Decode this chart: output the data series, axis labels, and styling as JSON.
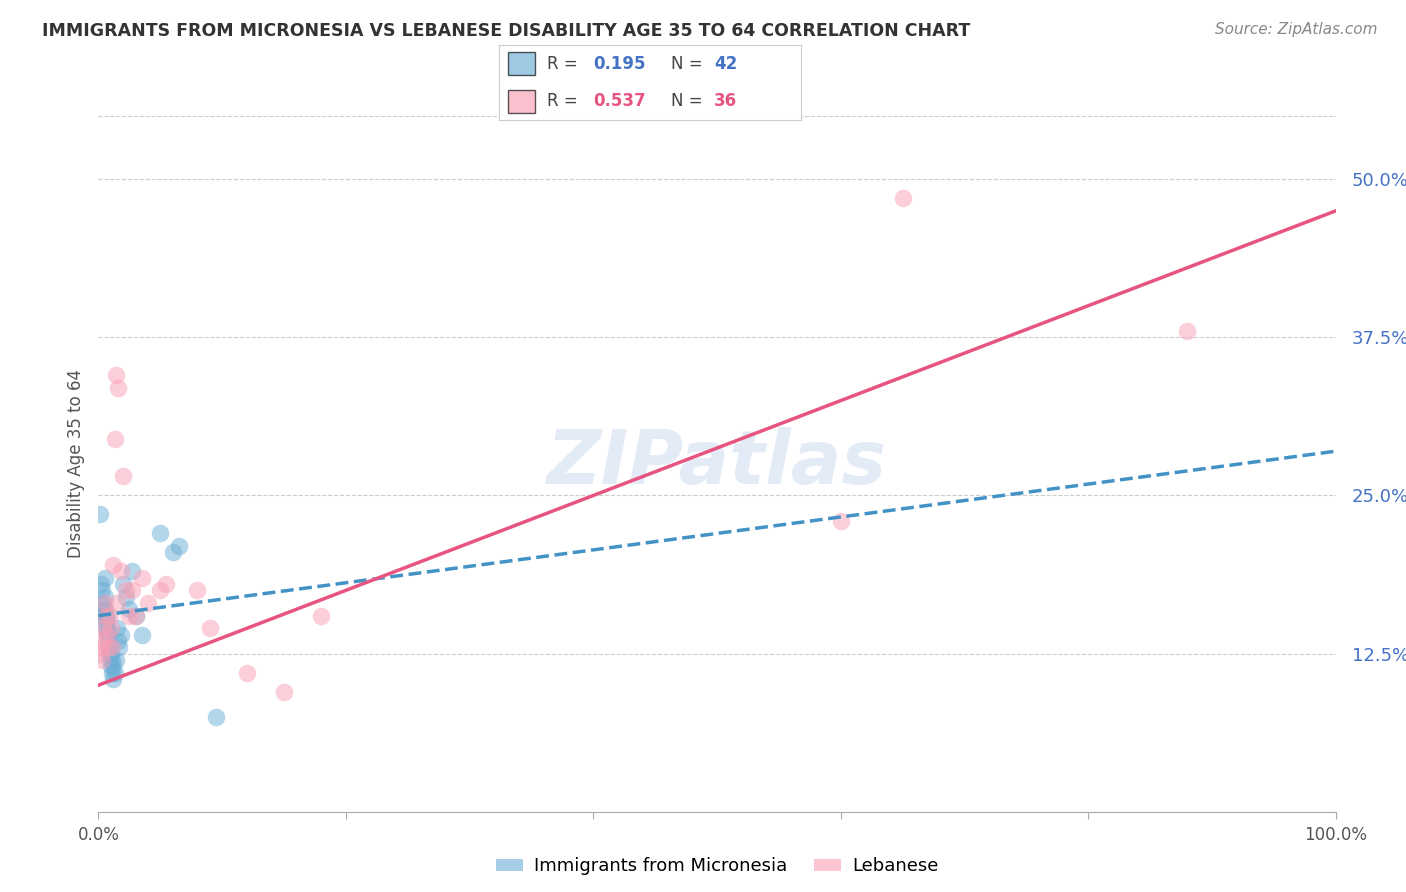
{
  "title": "IMMIGRANTS FROM MICRONESIA VS LEBANESE DISABILITY AGE 35 TO 64 CORRELATION CHART",
  "source": "Source: ZipAtlas.com",
  "ylabel": "Disability Age 35 to 64",
  "ytick_labels": [
    "12.5%",
    "25.0%",
    "37.5%",
    "50.0%"
  ],
  "ytick_values": [
    0.125,
    0.25,
    0.375,
    0.5
  ],
  "xlim": [
    0.0,
    1.0
  ],
  "ylim": [
    0.0,
    0.55
  ],
  "watermark": "ZIPatlas",
  "micronesia_color": "#6baed6",
  "lebanese_color": "#fa9fb5",
  "mic_trend_x0": 0.0,
  "mic_trend_x1": 1.0,
  "mic_trend_y0": 0.155,
  "mic_trend_y1": 0.285,
  "leb_trend_x0": 0.0,
  "leb_trend_x1": 1.0,
  "leb_trend_y0": 0.1,
  "leb_trend_y1": 0.475,
  "micronesia_x": [
    0.001,
    0.002,
    0.003,
    0.003,
    0.004,
    0.004,
    0.005,
    0.005,
    0.005,
    0.006,
    0.006,
    0.006,
    0.007,
    0.007,
    0.007,
    0.008,
    0.008,
    0.008,
    0.009,
    0.009,
    0.01,
    0.01,
    0.011,
    0.011,
    0.012,
    0.012,
    0.013,
    0.014,
    0.015,
    0.016,
    0.017,
    0.018,
    0.02,
    0.022,
    0.025,
    0.027,
    0.03,
    0.035,
    0.05,
    0.06,
    0.065,
    0.095
  ],
  "micronesia_y": [
    0.235,
    0.18,
    0.16,
    0.175,
    0.155,
    0.165,
    0.185,
    0.17,
    0.16,
    0.155,
    0.15,
    0.145,
    0.155,
    0.145,
    0.14,
    0.135,
    0.14,
    0.13,
    0.125,
    0.12,
    0.125,
    0.115,
    0.12,
    0.11,
    0.115,
    0.105,
    0.11,
    0.12,
    0.145,
    0.135,
    0.13,
    0.14,
    0.18,
    0.17,
    0.16,
    0.19,
    0.155,
    0.14,
    0.22,
    0.205,
    0.21,
    0.075
  ],
  "lebanese_x": [
    0.001,
    0.002,
    0.003,
    0.004,
    0.004,
    0.005,
    0.006,
    0.007,
    0.008,
    0.009,
    0.01,
    0.011,
    0.012,
    0.013,
    0.014,
    0.015,
    0.016,
    0.018,
    0.02,
    0.022,
    0.025,
    0.027,
    0.03,
    0.035,
    0.04,
    0.05,
    0.055,
    0.08,
    0.09,
    0.12,
    0.15,
    0.18,
    0.6,
    0.65,
    0.88
  ],
  "lebanese_y": [
    0.125,
    0.13,
    0.12,
    0.135,
    0.145,
    0.165,
    0.155,
    0.14,
    0.13,
    0.155,
    0.145,
    0.13,
    0.195,
    0.295,
    0.345,
    0.165,
    0.335,
    0.19,
    0.265,
    0.175,
    0.155,
    0.175,
    0.155,
    0.185,
    0.165,
    0.175,
    0.18,
    0.175,
    0.145,
    0.11,
    0.095,
    0.155,
    0.23,
    0.485,
    0.38
  ]
}
